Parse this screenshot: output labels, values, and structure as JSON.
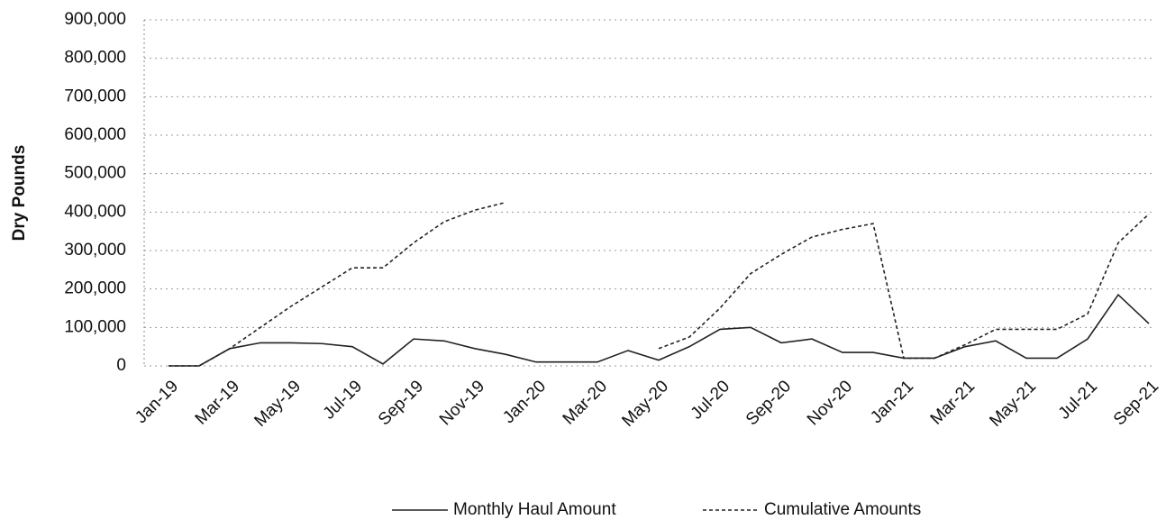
{
  "chart_data": {
    "type": "line",
    "ylabel": "Dry Pounds",
    "categories": [
      "Jan-19",
      null,
      "Mar-19",
      null,
      "May-19",
      null,
      "Jul-19",
      null,
      "Sep-19",
      null,
      "Nov-19",
      null,
      "Jan-20",
      null,
      "Mar-20",
      null,
      "May-20",
      null,
      "Jul-20",
      null,
      "Sep-20",
      null,
      "Nov-20",
      null,
      "Jan-21",
      null,
      "Mar-21",
      null,
      "May-21",
      null,
      "Jul-21",
      null,
      "Sep-21"
    ],
    "series": [
      {
        "name": "Monthly Haul Amount",
        "color": "#222222",
        "dash": "solid",
        "values": [
          0,
          0,
          45000,
          60000,
          60000,
          58000,
          50000,
          5000,
          70000,
          65000,
          45000,
          30000,
          10000,
          10000,
          10000,
          40000,
          15000,
          50000,
          95000,
          100000,
          60000,
          70000,
          35000,
          35000,
          20000,
          20000,
          50000,
          65000,
          20000,
          20000,
          70000,
          185000,
          110000
        ]
      },
      {
        "name": "Cumulative Amounts",
        "color": "#222222",
        "dash": "dashed",
        "values": [
          0,
          0,
          45000,
          100000,
          155000,
          205000,
          255000,
          255000,
          320000,
          375000,
          405000,
          425000,
          null,
          null,
          null,
          null,
          45000,
          75000,
          150000,
          240000,
          290000,
          335000,
          355000,
          370000,
          20000,
          20000,
          55000,
          95000,
          95000,
          95000,
          135000,
          320000,
          395000
        ]
      }
    ],
    "ylim": [
      0,
      900000
    ],
    "yticks": [
      0,
      {
        "value": 100000,
        "label": "100,000"
      },
      {
        "value": 200000,
        "label": "200,000"
      },
      {
        "value": 300000,
        "label": "300,000"
      },
      {
        "value": 400000,
        "label": "400,000"
      },
      {
        "value": 500000,
        "label": "500,000"
      },
      {
        "value": 600000,
        "label": "600,000"
      },
      {
        "value": 700000,
        "label": "700,000"
      },
      {
        "value": 800000,
        "label": "800,000"
      },
      {
        "value": 900000,
        "label": "900,000"
      }
    ],
    "grid": true,
    "legend": "bottom"
  }
}
